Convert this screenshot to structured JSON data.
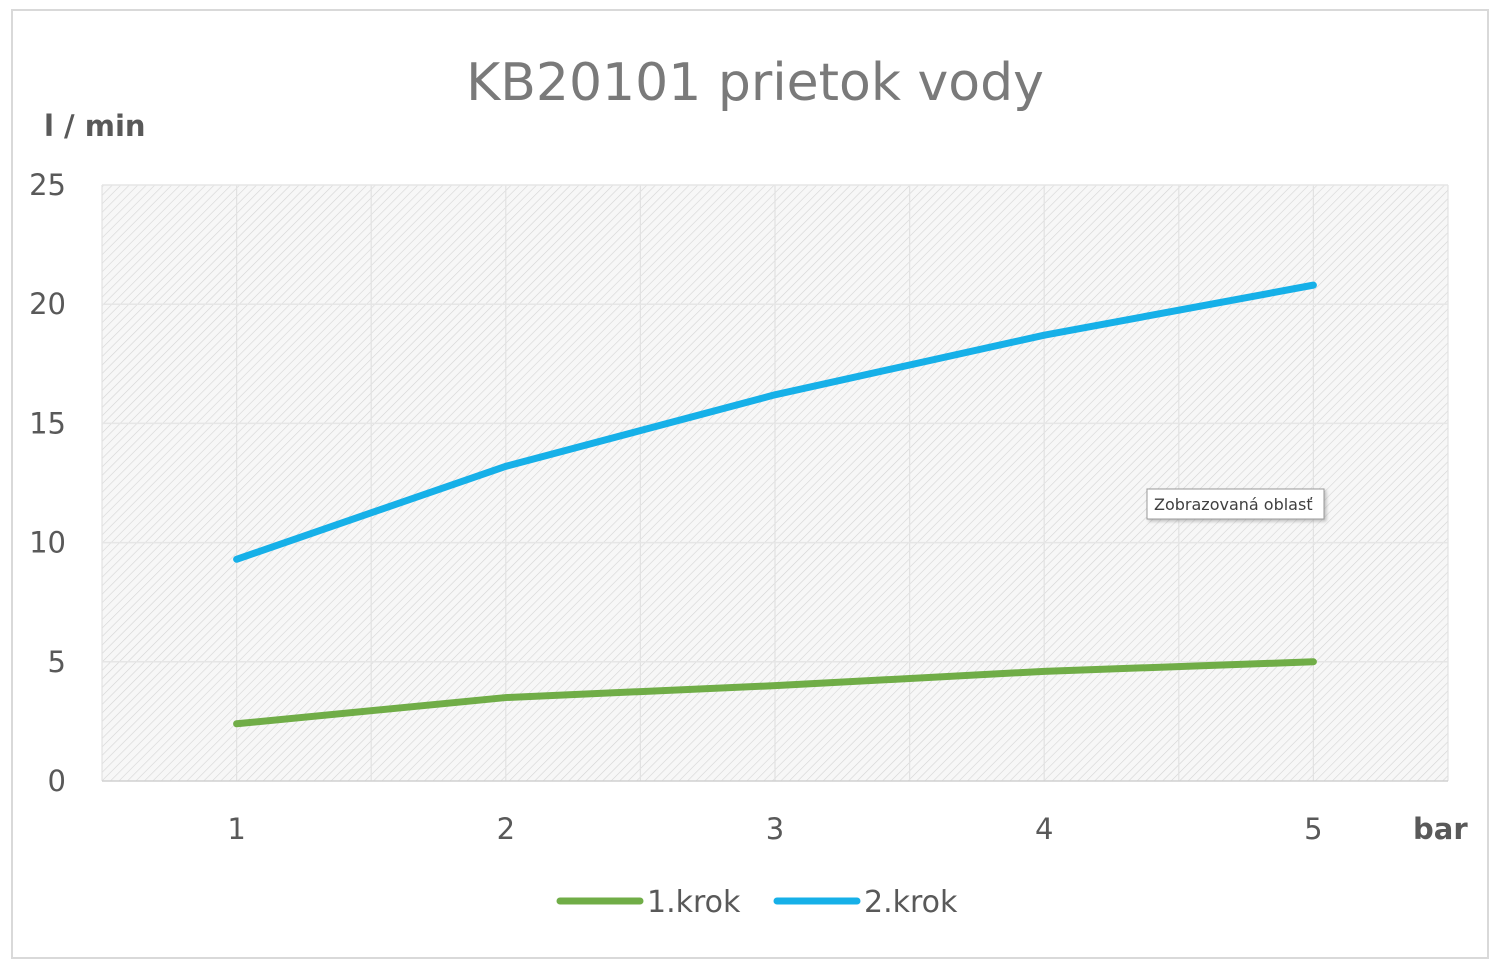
{
  "chart_data": {
    "type": "line",
    "title": "KB20101 prietok vody",
    "ylabel": "l / min",
    "xlabel": "bar",
    "categories": [
      "1",
      "2",
      "3",
      "4",
      "5"
    ],
    "yticks": [
      "0",
      "5",
      "10",
      "15",
      "20",
      "25"
    ],
    "ylim": [
      0,
      25
    ],
    "grid": true,
    "legend_position": "bottom",
    "series": [
      {
        "name": "1.krok",
        "color": "#70ad47",
        "values": [
          2.4,
          3.5,
          4.0,
          4.6,
          5.0
        ]
      },
      {
        "name": "2.krok",
        "color": "#16b0e8",
        "values": [
          9.3,
          13.2,
          16.2,
          18.7,
          20.8
        ]
      }
    ],
    "tooltip": "Zobrazovaná oblasť"
  }
}
